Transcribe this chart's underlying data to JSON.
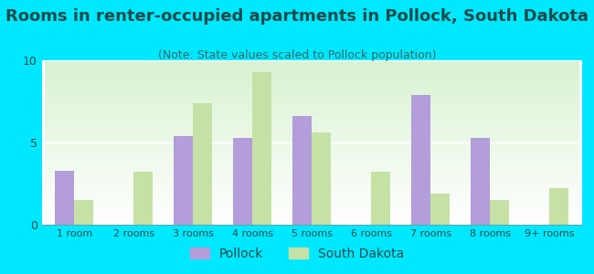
{
  "title": "Rooms in renter-occupied apartments in Pollock, South Dakota",
  "subtitle": "(Note: State values scaled to Pollock population)",
  "categories": [
    "1 room",
    "2 rooms",
    "3 rooms",
    "4 rooms",
    "5 rooms",
    "6 rooms",
    "7 rooms",
    "8 rooms",
    "9+ rooms"
  ],
  "pollock_values": [
    3.3,
    0,
    5.4,
    5.3,
    6.6,
    0,
    7.9,
    5.3,
    0
  ],
  "sd_values": [
    1.5,
    3.2,
    7.4,
    9.3,
    5.6,
    3.2,
    1.9,
    1.5,
    2.2
  ],
  "pollock_color": "#b39ddb",
  "sd_color": "#c5e1a5",
  "background_outer": "#00e8ff",
  "ylim": [
    0,
    10
  ],
  "yticks": [
    0,
    5,
    10
  ],
  "title_fontsize": 13,
  "subtitle_fontsize": 9,
  "tick_fontsize": 8,
  "legend_pollock": "Pollock",
  "legend_sd": "South Dakota",
  "text_color": "#1a4a4a",
  "subtitle_color": "#2a6a6a"
}
